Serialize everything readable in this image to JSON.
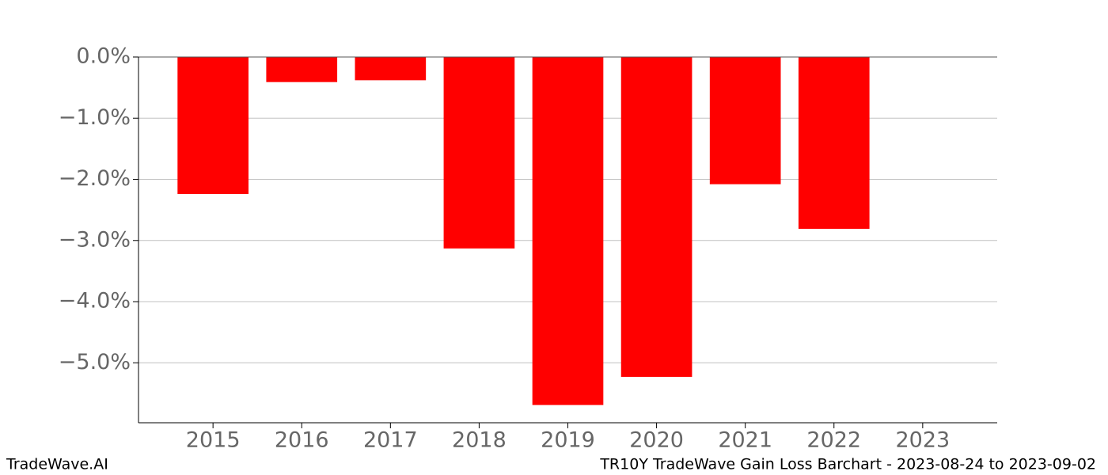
{
  "chart_data": {
    "type": "bar",
    "categories": [
      "2015",
      "2016",
      "2017",
      "2018",
      "2019",
      "2020",
      "2021",
      "2022",
      "2023"
    ],
    "values": [
      -2.24,
      -0.41,
      -0.38,
      -3.13,
      -5.69,
      -5.23,
      -2.08,
      -2.81,
      null
    ],
    "color": "#ff0000",
    "ylim": [
      -5.98,
      0
    ],
    "yticks": [
      {
        "value": 0,
        "label": "0.0%"
      },
      {
        "value": -1,
        "label": "−1.0%"
      },
      {
        "value": -2,
        "label": "−2.0%"
      },
      {
        "value": -3,
        "label": "−3.0%"
      },
      {
        "value": -4,
        "label": "−4.0%"
      },
      {
        "value": -5,
        "label": "−5.0%"
      }
    ],
    "grid": true,
    "footer_left": "TradeWave.AI",
    "footer_right": "TR10Y TradeWave Gain Loss Barchart - 2023-08-24 to 2023-09-02"
  }
}
